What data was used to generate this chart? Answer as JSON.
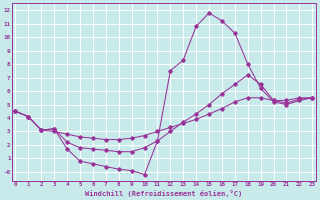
{
  "xlabel": "Windchill (Refroidissement éolien,°C)",
  "bg_color": "#c8eaea",
  "grid_color": "#ffffff",
  "line_color": "#993399",
  "xlim": [
    -0.3,
    23.3
  ],
  "ylim": [
    -0.7,
    12.5
  ],
  "xticks": [
    0,
    1,
    2,
    3,
    4,
    5,
    6,
    7,
    8,
    9,
    10,
    11,
    12,
    13,
    14,
    15,
    16,
    17,
    18,
    19,
    20,
    21,
    22,
    23
  ],
  "yticks": [
    0,
    1,
    2,
    3,
    4,
    5,
    6,
    7,
    8,
    9,
    10,
    11,
    12
  ],
  "ytick_labels": [
    "-0",
    "1",
    "2",
    "3",
    "4",
    "5",
    "6",
    "7",
    "8",
    "9",
    "10",
    "11",
    "12"
  ],
  "line1_x": [
    0,
    1,
    2,
    3,
    4,
    5,
    6,
    7,
    8,
    9,
    10,
    11,
    12,
    13,
    14,
    15,
    16,
    17,
    18,
    19,
    20,
    21,
    22,
    23
  ],
  "line1_y": [
    4.5,
    4.1,
    3.1,
    3.2,
    1.7,
    0.8,
    0.6,
    0.4,
    0.2,
    0.1,
    -0.2,
    2.3,
    7.5,
    8.3,
    10.8,
    11.8,
    11.2,
    10.3,
    8.0,
    6.2,
    5.2,
    5.0,
    5.3,
    5.5
  ],
  "line2_x": [
    0,
    1,
    2,
    3,
    4,
    5,
    6,
    7,
    8,
    9,
    10,
    11,
    12,
    13,
    14,
    15,
    16,
    17,
    18,
    19,
    20,
    21,
    22,
    23
  ],
  "line2_y": [
    4.5,
    4.1,
    3.1,
    3.0,
    2.8,
    2.6,
    2.5,
    2.4,
    2.4,
    2.5,
    2.7,
    3.0,
    3.3,
    3.6,
    3.9,
    4.3,
    4.7,
    5.2,
    5.5,
    5.5,
    5.3,
    5.3,
    5.5,
    5.5
  ],
  "line3_x": [
    0,
    1,
    2,
    3,
    4,
    5,
    6,
    7,
    8,
    9,
    10,
    11,
    12,
    13,
    14,
    15,
    16,
    17,
    18,
    19,
    20,
    21,
    22,
    23
  ],
  "line3_y": [
    4.5,
    4.1,
    3.1,
    3.2,
    2.2,
    1.8,
    1.7,
    1.6,
    1.5,
    1.5,
    1.8,
    2.3,
    3.0,
    3.7,
    4.3,
    5.0,
    5.8,
    6.5,
    7.2,
    6.5,
    5.3,
    5.1,
    5.4,
    5.5
  ]
}
